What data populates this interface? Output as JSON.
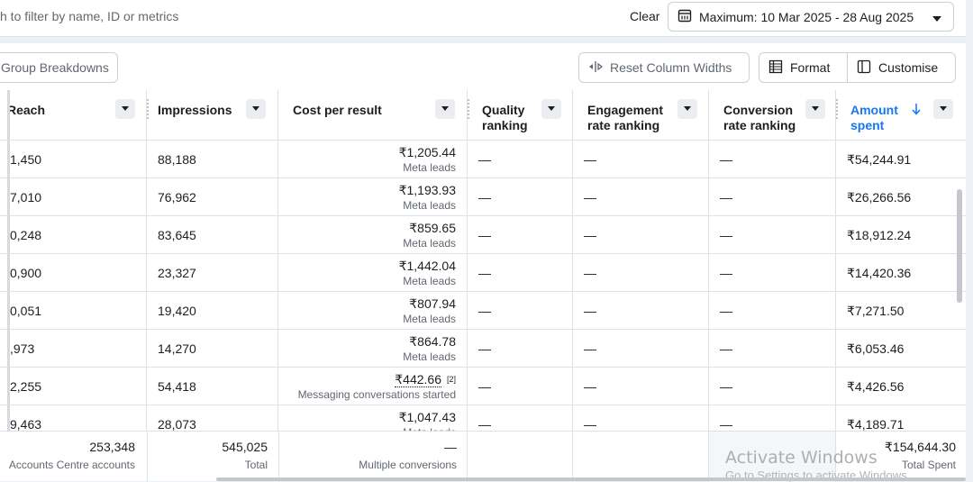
{
  "search": {
    "placeholder": "h to filter by name, ID or metrics"
  },
  "filters": {
    "clear_label": "Clear",
    "date_range_label": "Maximum: 10 Mar 2025 - 28 Aug 2025"
  },
  "toolbar": {
    "group_breakdowns_label": "Group Breakdowns",
    "reset_columns_label": "Reset Column Widths",
    "format_label": "Format",
    "customise_label": "Customise"
  },
  "columns": {
    "reach": "Reach",
    "impressions": "Impressions",
    "cost_per_result": "Cost per result",
    "quality": [
      "Quality",
      "ranking"
    ],
    "engagement": [
      "Engagement",
      "rate ranking"
    ],
    "conversion": [
      "Conversion",
      "rate ranking"
    ],
    "amount": [
      "Amount",
      "spent"
    ]
  },
  "rows": [
    {
      "reach": "1,450",
      "impressions": "88,188",
      "cost": "₹1,205.44",
      "cost_sub": "Meta leads",
      "quality": "—",
      "engagement": "—",
      "conversion": "—",
      "amount": "₹54,244.91"
    },
    {
      "reach": "7,010",
      "impressions": "76,962",
      "cost": "₹1,193.93",
      "cost_sub": "Meta leads",
      "quality": "—",
      "engagement": "—",
      "conversion": "—",
      "amount": "₹26,266.56"
    },
    {
      "reach": "0,248",
      "impressions": "83,645",
      "cost": "₹859.65",
      "cost_sub": "Meta leads",
      "quality": "—",
      "engagement": "—",
      "conversion": "—",
      "amount": "₹18,912.24"
    },
    {
      "reach": "0,900",
      "impressions": "23,327",
      "cost": "₹1,442.04",
      "cost_sub": "Meta leads",
      "quality": "—",
      "engagement": "—",
      "conversion": "—",
      "amount": "₹14,420.36"
    },
    {
      "reach": "0,051",
      "impressions": "19,420",
      "cost": "₹807.94",
      "cost_sub": "Meta leads",
      "quality": "—",
      "engagement": "—",
      "conversion": "—",
      "amount": "₹7,271.50"
    },
    {
      "reach": ",973",
      "impressions": "14,270",
      "cost": "₹864.78",
      "cost_sub": "Meta leads",
      "quality": "—",
      "engagement": "—",
      "conversion": "—",
      "amount": "₹6,053.46"
    },
    {
      "reach": "2,255",
      "impressions": "54,418",
      "cost": "₹442.66",
      "cost_note": "[2]",
      "cost_sub": "Messaging conversations started",
      "quality": "—",
      "engagement": "—",
      "conversion": "—",
      "amount": "₹4,426.56"
    },
    {
      "reach": "9,463",
      "impressions": "28,073",
      "cost": "₹1,047.43",
      "cost_sub": "Meta leads",
      "quality": "—",
      "engagement": "—",
      "conversion": "—",
      "amount": "₹4,189.71"
    }
  ],
  "totals": {
    "reach": "253,348",
    "reach_sub": "Accounts Centre accounts",
    "impressions": "545,025",
    "impressions_sub": "Total",
    "cost": "—",
    "cost_sub": "Multiple conversions",
    "amount": "₹154,644.30",
    "amount_sub": "Total Spent"
  },
  "watermark": {
    "title": "Activate Windows",
    "subtitle": "Go to Settings to activate Windows."
  },
  "colors": {
    "accent": "#1877f2",
    "border": "#dfe1e6"
  }
}
